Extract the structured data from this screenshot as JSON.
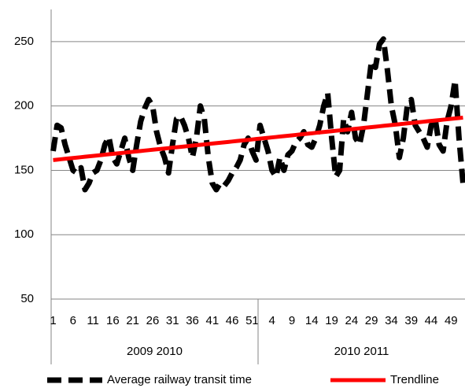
{
  "chart_data": {
    "type": "line",
    "categories": [
      "1",
      null,
      null,
      null,
      null,
      "6",
      null,
      null,
      null,
      null,
      "11",
      null,
      null,
      null,
      null,
      "16",
      null,
      null,
      null,
      null,
      "21",
      null,
      null,
      null,
      null,
      "26",
      null,
      null,
      null,
      null,
      "31",
      null,
      null,
      null,
      null,
      "36",
      null,
      null,
      null,
      null,
      "41",
      null,
      null,
      null,
      null,
      "46",
      null,
      null,
      null,
      null,
      "51",
      null,
      null,
      null,
      null,
      "4",
      null,
      null,
      null,
      null,
      "9",
      null,
      null,
      null,
      null,
      "14",
      null,
      null,
      null,
      null,
      "19",
      null,
      null,
      null,
      null,
      "24",
      null,
      null,
      null,
      null,
      "29",
      null,
      null,
      null,
      null,
      "34",
      null,
      null,
      null,
      null,
      "39",
      null,
      null,
      null,
      null,
      "44",
      null,
      null,
      null,
      null,
      "49",
      null,
      null,
      null
    ],
    "category_groups": [
      "2009 2010",
      "2010 2011"
    ],
    "series": [
      {
        "name": "Average railway transit time",
        "color": "#000000",
        "line_style": "dashed",
        "values": [
          165,
          185,
          183,
          170,
          160,
          150,
          148,
          152,
          135,
          140,
          148,
          150,
          158,
          170,
          176,
          160,
          155,
          165,
          175,
          160,
          150,
          170,
          188,
          198,
          205,
          200,
          180,
          168,
          160,
          148,
          170,
          190,
          192,
          185,
          175,
          160,
          175,
          200,
          190,
          160,
          140,
          135,
          140,
          138,
          142,
          148,
          152,
          158,
          170,
          175,
          165,
          158,
          185,
          175,
          165,
          150,
          145,
          160,
          150,
          162,
          165,
          172,
          175,
          180,
          170,
          168,
          175,
          185,
          200,
          210,
          175,
          145,
          150,
          190,
          180,
          195,
          175,
          170,
          185,
          210,
          235,
          230,
          248,
          252,
          228,
          200,
          185,
          160,
          175,
          200,
          205,
          185,
          180,
          175,
          168,
          185,
          190,
          170,
          165,
          188,
          200,
          220,
          175,
          140
        ]
      },
      {
        "name": "Trendline",
        "color": "#ff0000",
        "line_style": "solid",
        "values": [
          158,
          158.32,
          158.64,
          158.96,
          159.28,
          159.6,
          159.92,
          160.24,
          160.56,
          160.88,
          161.2,
          161.52,
          161.84,
          162.16,
          162.48,
          162.8,
          163.12,
          163.44,
          163.76,
          164.08,
          164.4,
          164.72,
          165.04,
          165.36,
          165.68,
          166,
          166.32,
          166.64,
          166.96,
          167.28,
          167.6,
          167.92,
          168.24,
          168.56,
          168.88,
          169.2,
          169.52,
          169.84,
          170.16,
          170.48,
          170.8,
          171.12,
          171.44,
          171.76,
          172.08,
          172.4,
          172.72,
          173.04,
          173.36,
          173.68,
          174,
          174.32,
          174.64,
          174.96,
          175.28,
          175.6,
          175.92,
          176.24,
          176.56,
          176.88,
          177.2,
          177.52,
          177.84,
          178.16,
          178.48,
          178.8,
          179.12,
          179.44,
          179.76,
          180.08,
          180.4,
          180.72,
          181.04,
          181.36,
          181.68,
          182,
          182.32,
          182.64,
          182.96,
          183.28,
          183.6,
          183.92,
          184.24,
          184.56,
          184.88,
          185.2,
          185.52,
          185.84,
          186.16,
          186.48,
          186.8,
          187.12,
          187.44,
          187.76,
          188.08,
          188.4,
          188.72,
          189.04,
          189.36,
          189.68,
          190,
          190.32,
          190.64,
          190.96
        ]
      }
    ],
    "ylim": [
      50,
      275
    ],
    "yticks": [
      50,
      100,
      150,
      200,
      250
    ],
    "grid": true,
    "legend": "bottom"
  }
}
